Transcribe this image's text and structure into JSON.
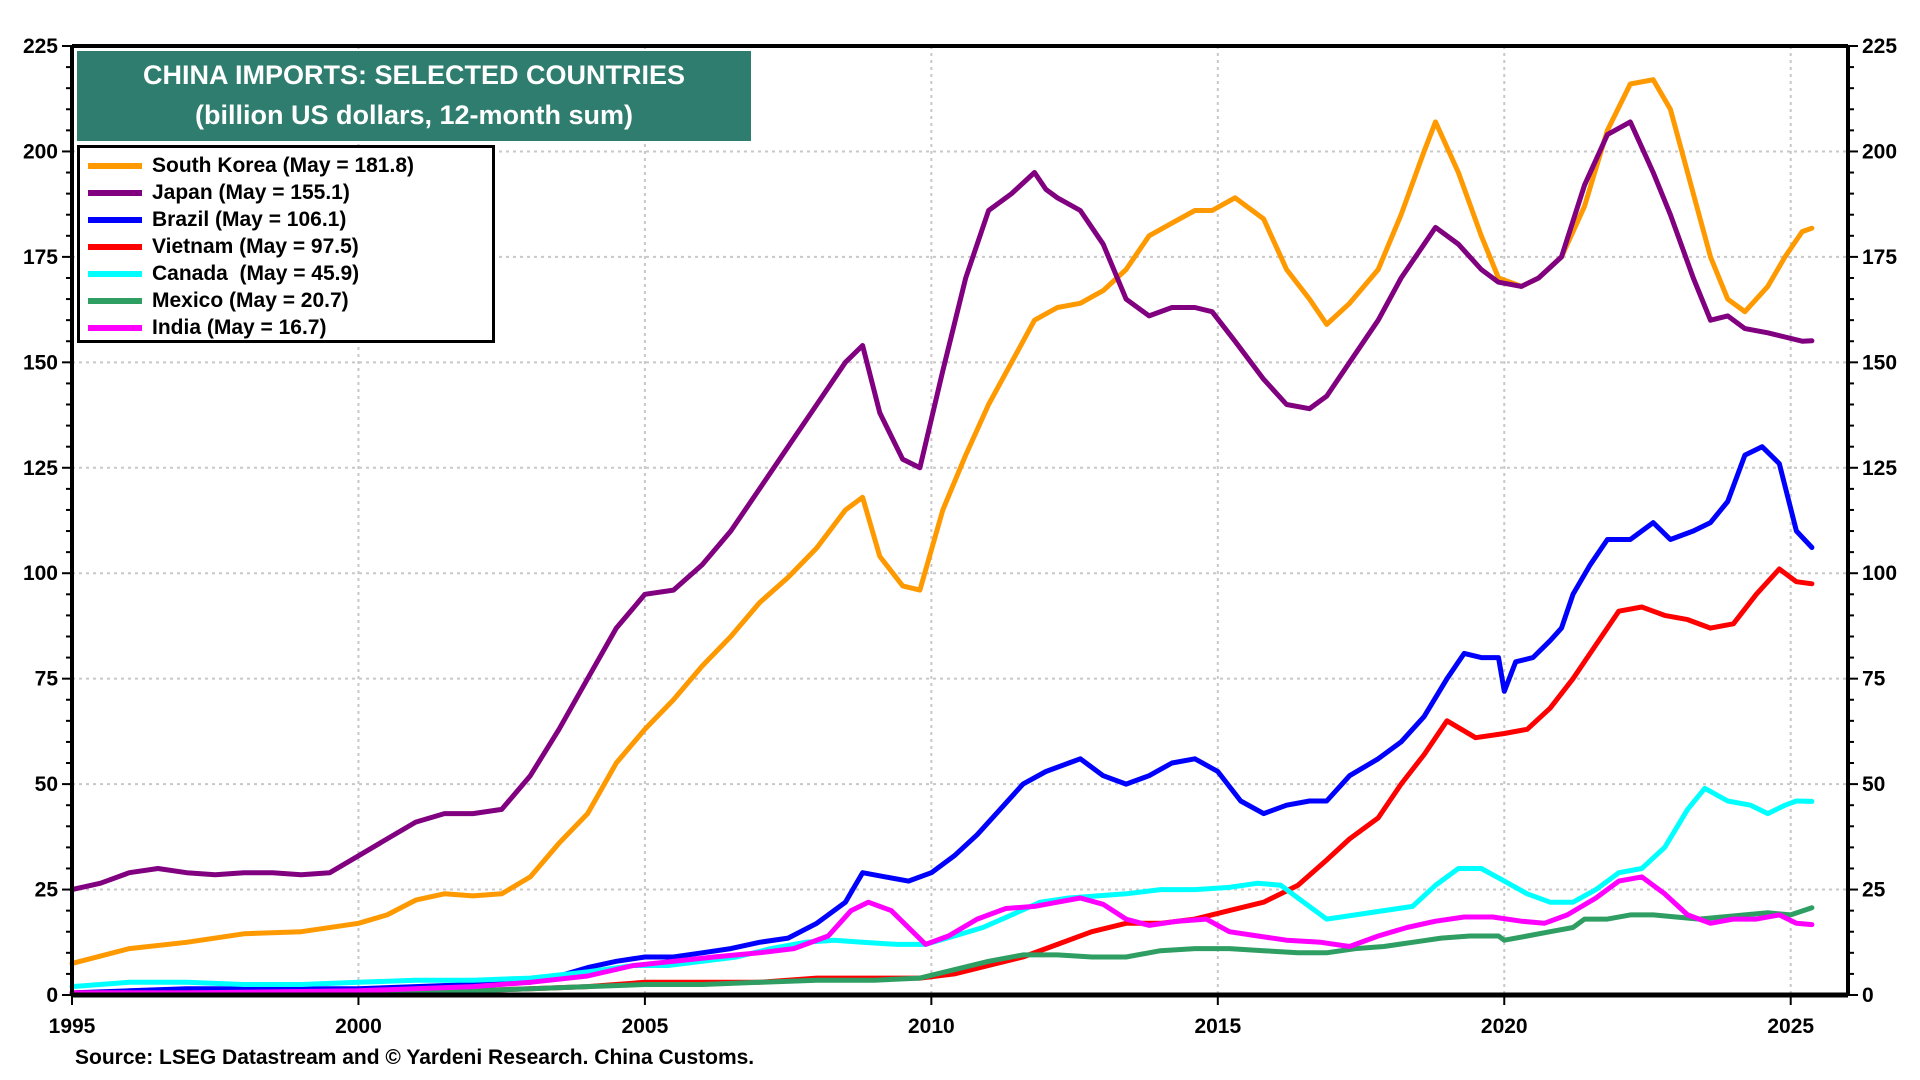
{
  "chart_data": {
    "type": "line",
    "title": "CHINA IMPORTS: SELECTED COUNTRIES",
    "subtitle": "(billion US dollars, 12-month sum)",
    "xlabel": "",
    "ylabel": "",
    "xlim": [
      1995,
      2026
    ],
    "ylim": [
      0,
      225
    ],
    "x_ticks": [
      "1995",
      "2000",
      "2005",
      "2010",
      "2015",
      "2020",
      "2025"
    ],
    "y_ticks": [
      "0",
      "25",
      "50",
      "75",
      "100",
      "125",
      "150",
      "175",
      "200",
      "225"
    ],
    "grid": true,
    "legend_position": "top-left",
    "source": "Source: LSEG Datastream and © Yardeni Research. China Customs.",
    "series": [
      {
        "name": "South Korea (May = 181.8)",
        "color": "#ff9900",
        "x": [
          1995,
          1996,
          1997,
          1998,
          1999,
          2000,
          2000.5,
          2001,
          2001.5,
          2002,
          2002.5,
          2003,
          2003.5,
          2004,
          2004.5,
          2005,
          2005.5,
          2006,
          2006.5,
          2007,
          2007.5,
          2008,
          2008.5,
          2008.8,
          2009.1,
          2009.5,
          2009.8,
          2010.2,
          2010.6,
          2011,
          2011.4,
          2011.8,
          2012.2,
          2012.6,
          2013,
          2013.4,
          2013.8,
          2014.2,
          2014.6,
          2014.9,
          2015.3,
          2015.8,
          2016.2,
          2016.6,
          2016.9,
          2017.3,
          2017.8,
          2018.2,
          2018.6,
          2018.8,
          2019.2,
          2019.6,
          2019.9,
          2020.3,
          2020.6,
          2021,
          2021.4,
          2021.8,
          2022.2,
          2022.6,
          2022.9,
          2023.3,
          2023.6,
          2023.9,
          2024.2,
          2024.6,
          2024.9,
          2025.2,
          2025.37
        ],
        "y": [
          7.5,
          11,
          12.5,
          14.5,
          15,
          17,
          19,
          22.5,
          24,
          23.5,
          24,
          28,
          36,
          43,
          55,
          63,
          70,
          78,
          85,
          93,
          99,
          106,
          115,
          118,
          104,
          97,
          96,
          115,
          128,
          140,
          150,
          160,
          163,
          164,
          167,
          172,
          180,
          183,
          186,
          186,
          189,
          184,
          172,
          165,
          159,
          164,
          172,
          185,
          200,
          207,
          195,
          180,
          170,
          168,
          170,
          175,
          187,
          205,
          216,
          217,
          210,
          190,
          175,
          165,
          162,
          168,
          175,
          181,
          181.8
        ]
      },
      {
        "name": "Japan (May = 155.1)",
        "color": "#800080",
        "x": [
          1995,
          1995.5,
          1996,
          1996.5,
          1997,
          1997.5,
          1998,
          1998.5,
          1999,
          1999.5,
          2000,
          2000.5,
          2001,
          2001.5,
          2002,
          2002.5,
          2003,
          2003.5,
          2004,
          2004.5,
          2005,
          2005.5,
          2006,
          2006.5,
          2007,
          2007.5,
          2008,
          2008.5,
          2008.8,
          2009.1,
          2009.5,
          2009.8,
          2010.2,
          2010.6,
          2011,
          2011.4,
          2011.8,
          2012,
          2012.2,
          2012.6,
          2013,
          2013.4,
          2013.8,
          2014.2,
          2014.6,
          2014.9,
          2015.3,
          2015.8,
          2016.2,
          2016.6,
          2016.9,
          2017.3,
          2017.8,
          2018.2,
          2018.6,
          2018.8,
          2019.2,
          2019.6,
          2019.9,
          2020.3,
          2020.6,
          2021,
          2021.4,
          2021.8,
          2022.2,
          2022.6,
          2022.9,
          2023.3,
          2023.6,
          2023.9,
          2024.2,
          2024.6,
          2024.9,
          2025.2,
          2025.37
        ],
        "y": [
          25,
          26.5,
          29,
          30,
          29,
          28.5,
          29,
          29,
          28.5,
          29,
          33,
          37,
          41,
          43,
          43,
          44,
          52,
          63,
          75,
          87,
          95,
          96,
          102,
          110,
          120,
          130,
          140,
          150,
          154,
          138,
          127,
          125,
          148,
          170,
          186,
          190,
          195,
          191,
          189,
          186,
          178,
          165,
          161,
          163,
          163,
          162,
          155,
          146,
          140,
          139,
          142,
          150,
          160,
          170,
          178,
          182,
          178,
          172,
          169,
          168,
          170,
          175,
          192,
          204,
          207,
          195,
          185,
          170,
          160,
          161,
          158,
          157,
          156,
          155,
          155.1
        ]
      },
      {
        "name": "Brazil (May = 106.1)",
        "color": "#0000ff",
        "x": [
          1995,
          1996,
          1997,
          1998,
          1999,
          2000,
          2001,
          2002,
          2003,
          2003.5,
          2004,
          2004.5,
          2005,
          2005.5,
          2006,
          2006.5,
          2007,
          2007.5,
          2008,
          2008.5,
          2008.8,
          2009.2,
          2009.6,
          2010,
          2010.4,
          2010.8,
          2011.2,
          2011.6,
          2012,
          2012.4,
          2012.6,
          2013,
          2013.4,
          2013.8,
          2014.2,
          2014.6,
          2015,
          2015.4,
          2015.8,
          2016.2,
          2016.6,
          2016.9,
          2017.3,
          2017.8,
          2018.2,
          2018.6,
          2019,
          2019.3,
          2019.6,
          2019.9,
          2020,
          2020.2,
          2020.5,
          2020.8,
          2021,
          2021.2,
          2021.5,
          2021.8,
          2022.2,
          2022.6,
          2022.9,
          2023.3,
          2023.6,
          2023.9,
          2024.2,
          2024.5,
          2024.8,
          2025.1,
          2025.37
        ],
        "y": [
          0.5,
          1,
          1.5,
          1.5,
          1.5,
          1.5,
          2,
          2.5,
          3,
          4.5,
          6.5,
          8,
          9,
          9,
          10,
          11,
          12.5,
          13.5,
          17,
          22,
          29,
          28,
          27,
          29,
          33,
          38,
          44,
          50,
          53,
          55,
          56,
          52,
          50,
          52,
          55,
          56,
          53,
          46,
          43,
          45,
          46,
          46,
          52,
          56,
          60,
          66,
          75,
          81,
          80,
          80,
          72,
          79,
          80,
          84,
          87,
          95,
          102,
          108,
          108,
          112,
          108,
          110,
          112,
          117,
          128,
          130,
          126,
          110,
          106.1
        ]
      },
      {
        "name": "Vietnam (May = 97.5)",
        "color": "#ff0000",
        "x": [
          1995,
          2000,
          2002,
          2003,
          2004,
          2005,
          2006,
          2007,
          2008,
          2009,
          2009.8,
          2010.4,
          2011,
          2011.6,
          2012.2,
          2012.8,
          2013.4,
          2014,
          2014.6,
          2015.2,
          2015.8,
          2016.4,
          2016.9,
          2017.3,
          2017.8,
          2018.2,
          2018.6,
          2019,
          2019.5,
          2020,
          2020.4,
          2020.8,
          2021.2,
          2021.6,
          2022,
          2022.4,
          2022.8,
          2023.2,
          2023.6,
          2024,
          2024.4,
          2024.8,
          2025.1,
          2025.37
        ],
        "y": [
          0.5,
          0.5,
          1,
          1.5,
          2,
          3,
          3,
          3,
          4,
          4,
          4,
          5,
          7,
          9,
          12,
          15,
          17,
          17,
          18,
          20,
          22,
          26,
          32,
          37,
          42,
          50,
          57,
          65,
          61,
          62,
          63,
          68,
          75,
          83,
          91,
          92,
          90,
          89,
          87,
          88,
          95,
          101,
          98,
          97.5
        ]
      },
      {
        "name": "Canada  (May = 45.9)",
        "color": "#00ffff",
        "x": [
          1995,
          1996,
          1997,
          1998,
          1999,
          2000,
          2001,
          2002,
          2003,
          2004,
          2004.8,
          2005.4,
          2006,
          2006.6,
          2007.2,
          2007.8,
          2008.3,
          2008.8,
          2009.4,
          2009.9,
          2010.4,
          2010.9,
          2011.4,
          2011.9,
          2012.4,
          2012.9,
          2013.4,
          2014,
          2014.6,
          2015.2,
          2015.7,
          2016.1,
          2016.5,
          2016.9,
          2017.4,
          2017.9,
          2018.4,
          2018.8,
          2019.2,
          2019.6,
          2020,
          2020.4,
          2020.8,
          2021.2,
          2021.6,
          2022,
          2022.4,
          2022.8,
          2023.2,
          2023.5,
          2023.9,
          2024.3,
          2024.6,
          2024.9,
          2025.1,
          2025.37
        ],
        "y": [
          2,
          3,
          3,
          2.5,
          2.5,
          3,
          3.5,
          3.5,
          4,
          5.5,
          7,
          7,
          8,
          9,
          11,
          12.5,
          13,
          12.5,
          12,
          12,
          14,
          16,
          19,
          22,
          23,
          23.5,
          24,
          25,
          25,
          25.5,
          26.5,
          26,
          22,
          18,
          19,
          20,
          21,
          26,
          30,
          30,
          27,
          24,
          22,
          22,
          25,
          29,
          30,
          35,
          44,
          49,
          46,
          45,
          43,
          45,
          46,
          45.9
        ]
      },
      {
        "name": "Mexico (May = 20.7)",
        "color": "#2e9e63",
        "x": [
          1995,
          2000,
          2002,
          2003,
          2004,
          2005,
          2006,
          2007,
          2008,
          2009,
          2009.8,
          2010.4,
          2011,
          2011.6,
          2012.2,
          2012.8,
          2013.4,
          2014,
          2014.6,
          2015.2,
          2015.8,
          2016.4,
          2016.9,
          2017.4,
          2017.9,
          2018.4,
          2018.9,
          2019.4,
          2019.9,
          2020,
          2020.4,
          2020.8,
          2021.2,
          2021.4,
          2021.8,
          2022.2,
          2022.6,
          2023,
          2023.4,
          2023.8,
          2024.2,
          2024.6,
          2025,
          2025.37
        ],
        "y": [
          0.2,
          0.5,
          1,
          1.5,
          2,
          2.5,
          2.5,
          3,
          3.5,
          3.5,
          4,
          6,
          8,
          9.5,
          9.5,
          9,
          9,
          10.5,
          11,
          11,
          10.5,
          10,
          10,
          11,
          11.5,
          12.5,
          13.5,
          14,
          14,
          13,
          14,
          15,
          16,
          18,
          18,
          19,
          19,
          18.5,
          18,
          18.5,
          19,
          19.5,
          19,
          20.7
        ]
      },
      {
        "name": "India (May = 16.7)",
        "color": "#ff00ff",
        "x": [
          1995,
          1997,
          2000,
          2002,
          2003,
          2004,
          2004.8,
          2005.5,
          2006.2,
          2007,
          2007.6,
          2008.2,
          2008.6,
          2008.9,
          2009.3,
          2009.6,
          2009.9,
          2010.3,
          2010.8,
          2011.3,
          2011.8,
          2012.2,
          2012.6,
          2013,
          2013.4,
          2013.8,
          2014.3,
          2014.8,
          2015.2,
          2015.7,
          2016.2,
          2016.8,
          2017.3,
          2017.8,
          2018.3,
          2018.8,
          2019.3,
          2019.8,
          2020.3,
          2020.7,
          2021.1,
          2021.6,
          2022,
          2022.4,
          2022.8,
          2023.2,
          2023.6,
          2024,
          2024.4,
          2024.8,
          2025.1,
          2025.37
        ],
        "y": [
          0.5,
          0.5,
          1,
          2,
          3,
          4.5,
          7,
          8,
          9,
          10,
          11,
          14,
          20,
          22,
          20,
          16,
          12,
          14,
          18,
          20.5,
          21,
          22,
          23,
          21.5,
          18,
          16.5,
          17.5,
          18,
          15,
          14,
          13,
          12.5,
          11.5,
          14,
          16,
          17.5,
          18.5,
          18.5,
          17.5,
          17,
          19,
          23,
          27,
          28,
          24,
          19,
          17,
          18,
          18,
          19,
          17,
          16.7
        ]
      }
    ]
  }
}
